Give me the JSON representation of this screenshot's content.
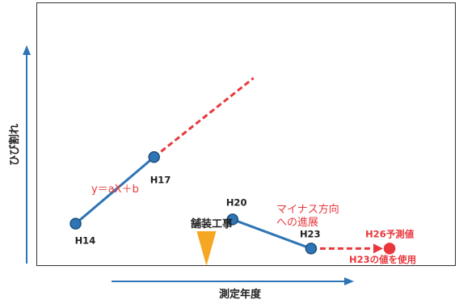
{
  "chart_data": {
    "type": "line",
    "xlabel": "測定年度",
    "ylabel": "ひび割れ",
    "points": [
      {
        "id": "H14",
        "label": "H14",
        "x": 14,
        "y": 1.0
      },
      {
        "id": "H17",
        "label": "H17",
        "x": 17,
        "y": 2.6
      },
      {
        "id": "H20",
        "label": "H20",
        "x": 20,
        "y": 1.1
      },
      {
        "id": "H23",
        "label": "H23",
        "x": 23,
        "y": 0.4
      },
      {
        "id": "H26",
        "label": "H26予測値",
        "x": 26,
        "y": 0.4
      }
    ],
    "segments": [
      {
        "id": "seg-h14-h17",
        "from": "H14",
        "to": "H17",
        "style": "solid",
        "color": "#2e75b6"
      },
      {
        "id": "seg-h17-extrapolation",
        "from": "H17",
        "to_value": {
          "x": 20.8,
          "y": 4.5
        },
        "style": "dashed",
        "color": "#e8383d"
      },
      {
        "id": "seg-h20-h23",
        "from": "H20",
        "to": "H23",
        "style": "solid",
        "color": "#2e75b6"
      },
      {
        "id": "seg-h23-h26",
        "from": "H23",
        "to": "H26",
        "style": "dashed",
        "color": "#e8383d",
        "arrow": true
      }
    ],
    "annotations": {
      "formula": "y＝aX＋b",
      "paving_work": "舗装工事",
      "minus_line1": "マイナス方向",
      "minus_line2": "への進展",
      "use_h23": "H23の値を使用"
    },
    "paving_marker_x": 19.0,
    "xlim": [
      12.5,
      28.5
    ],
    "ylim": [
      0,
      6.3
    ],
    "colors": {
      "blue": "#2e75b6",
      "blue_fill": "#2e75b6",
      "red": "#e8383d",
      "orange": "#f5a623",
      "text_dark": "#222222"
    }
  }
}
